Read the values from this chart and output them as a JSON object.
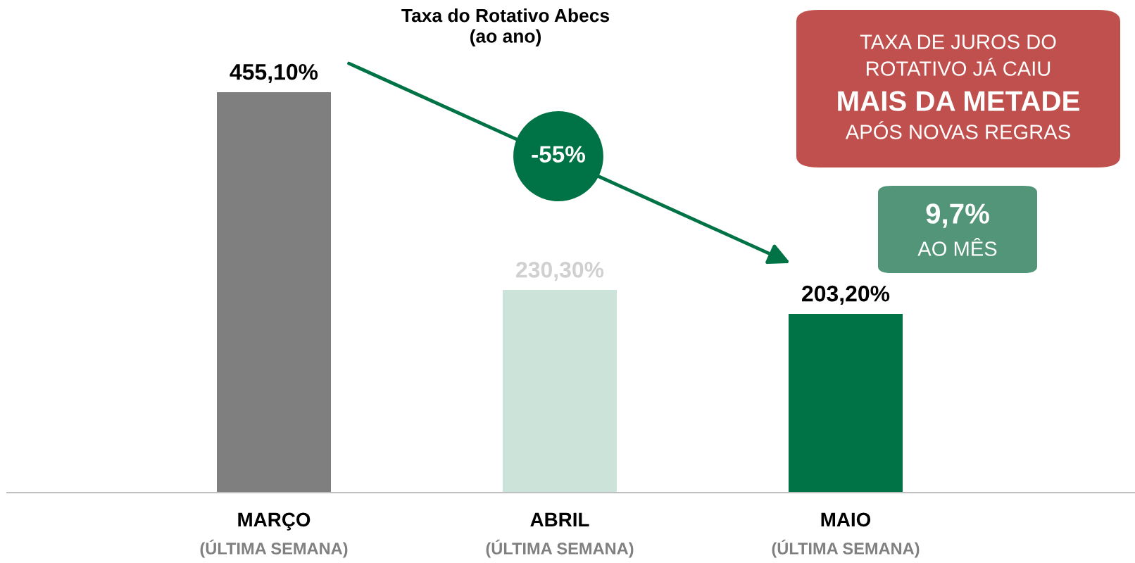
{
  "chart_data": {
    "type": "bar",
    "title": "Taxa do Rotativo Abecs\n(ao ano)",
    "categories": [
      "MARÇO\n(ÚLTIMA SEMANA)",
      "ABRIL\n(ÚLTIMA SEMANA)",
      "MAIO\n(ÚLTIMA SEMANA)"
    ],
    "values": [
      455.1,
      230.3,
      203.2
    ],
    "colors": [
      "#7f7f7f",
      "#cce3da",
      "#007346"
    ],
    "value_labels": [
      "455,10%",
      "230,30%",
      "203,20%"
    ],
    "grid": false,
    "legend": false,
    "tick_labels": "x",
    "annotations": [
      "-55%",
      "TAXA DE JUROS DO\nROTATIVO JÁ CAIU\nMAIS DA METADE\nAPÓS NOVAS REGRAS",
      "9,7%\nAO MÊS"
    ]
  }
}
